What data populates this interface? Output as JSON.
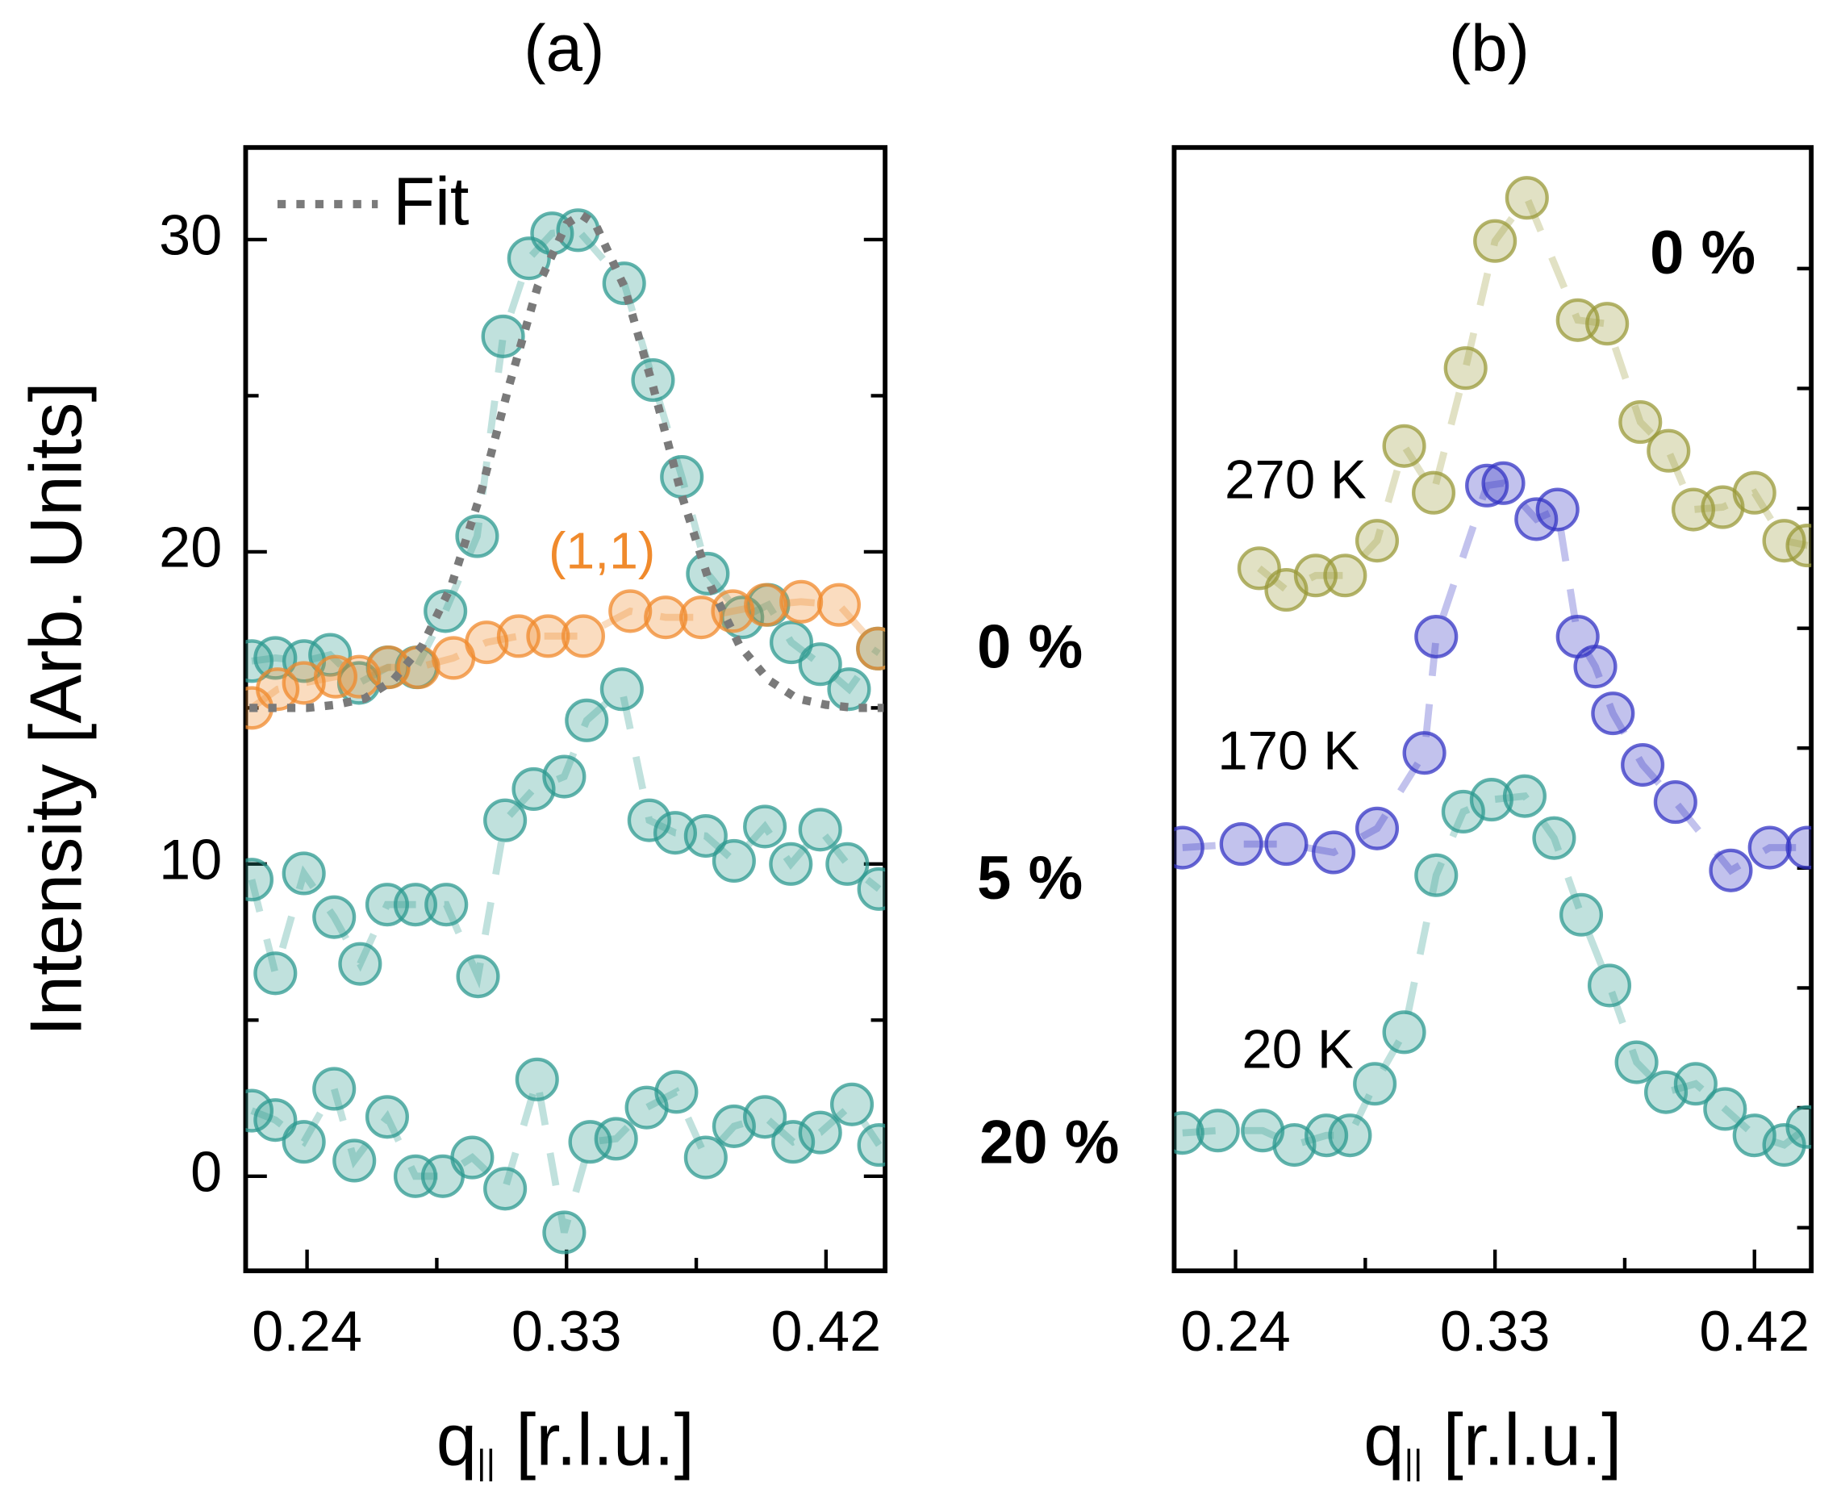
{
  "chart_data": [
    {
      "type": "scatter",
      "title": "(a)",
      "ylabel": "Intensity [Arb. Units]",
      "xlabel": {
        "text": "q",
        "subscript": "||",
        "after": " [r.l.u.]"
      },
      "xlim": [
        0.2187,
        0.4405
      ],
      "xticks": [
        0.24,
        0.33,
        0.42
      ],
      "xticks_minor": [
        0.285,
        0.375
      ],
      "ylim": [
        -3.03,
        32.95
      ],
      "yticks": [
        0,
        10,
        20,
        30
      ],
      "yticks_minor": [
        5,
        15,
        25
      ],
      "series": [
        {
          "name": "0 %",
          "style": "markers",
          "color": "#2e9a90",
          "x": [
            0.2208,
            0.229,
            0.239,
            0.248,
            0.258,
            0.268,
            0.278,
            0.288,
            0.299,
            0.308,
            0.317,
            0.325,
            0.334,
            0.35,
            0.36,
            0.37,
            0.379,
            0.391,
            0.4,
            0.408,
            0.418,
            0.428,
            0.438
          ],
          "values": [
            16.5,
            16.6,
            16.5,
            16.7,
            15.8,
            16.3,
            16.3,
            18.1,
            20.5,
            26.9,
            29.4,
            30.2,
            30.3,
            28.6,
            25.5,
            22.4,
            19.3,
            17.9,
            18.3,
            17.1,
            16.4,
            15.6,
            16.9
          ]
        },
        {
          "name": "(1,1)",
          "style": "markers",
          "color": "#f08a2c",
          "x": [
            0.2208,
            0.2298,
            0.2389,
            0.2499,
            0.2581,
            0.2683,
            0.2786,
            0.2908,
            0.3023,
            0.3134,
            0.3236,
            0.3358,
            0.3521,
            0.3644,
            0.3767,
            0.3877,
            0.3991,
            0.4114,
            0.4245,
            0.438
          ],
          "values": [
            15.0,
            15.6,
            15.8,
            16.0,
            16.0,
            16.3,
            16.3,
            16.6,
            17.1,
            17.3,
            17.3,
            17.3,
            18.1,
            17.9,
            17.9,
            18.1,
            18.3,
            18.4,
            18.3,
            16.9
          ]
        },
        {
          "name": "Fit",
          "style": "dotted",
          "color": "#7a7a7a",
          "legend": true,
          "x": [
            0.22,
            0.23,
            0.24,
            0.25,
            0.26,
            0.27,
            0.28,
            0.29,
            0.3,
            0.31,
            0.32,
            0.33,
            0.335,
            0.34,
            0.35,
            0.36,
            0.37,
            0.38,
            0.39,
            0.4,
            0.41,
            0.42,
            0.43,
            0.44
          ],
          "values": [
            15.0,
            15.0,
            15.0,
            15.1,
            15.3,
            15.9,
            17.0,
            18.9,
            21.8,
            25.3,
            28.5,
            30.5,
            30.8,
            30.5,
            28.5,
            25.3,
            21.8,
            18.9,
            17.0,
            15.9,
            15.3,
            15.1,
            15.0,
            15.0
          ]
        },
        {
          "name": "5 %",
          "style": "markers",
          "color": "#2e9a90",
          "x": [
            0.2208,
            0.229,
            0.2389,
            0.2494,
            0.2584,
            0.2678,
            0.2776,
            0.2883,
            0.2993,
            0.3087,
            0.3186,
            0.3292,
            0.337,
            0.3492,
            0.3587,
            0.3677,
            0.3783,
            0.3881,
            0.3988,
            0.4078,
            0.418,
            0.4274,
            0.4384
          ],
          "values": [
            9.5,
            6.5,
            9.7,
            8.3,
            6.8,
            8.7,
            8.7,
            8.7,
            6.4,
            11.4,
            12.4,
            12.8,
            14.6,
            15.6,
            11.4,
            11.0,
            10.9,
            10.1,
            11.2,
            10.0,
            11.1,
            10.0,
            9.2
          ]
        },
        {
          "name": "20 %",
          "style": "markers",
          "color": "#2e9a90",
          "x": [
            0.2208,
            0.229,
            0.2389,
            0.2494,
            0.2564,
            0.2678,
            0.2776,
            0.2871,
            0.2973,
            0.3087,
            0.3198,
            0.3292,
            0.3382,
            0.3472,
            0.3578,
            0.3681,
            0.3783,
            0.3881,
            0.3988,
            0.4086,
            0.418,
            0.429,
            0.4384
          ],
          "values": [
            2.1,
            1.8,
            1.1,
            2.8,
            0.5,
            1.9,
            0.0,
            0.0,
            0.6,
            -0.4,
            3.1,
            -1.8,
            1.1,
            1.2,
            2.2,
            2.7,
            0.6,
            1.6,
            1.9,
            1.1,
            1.4,
            2.3,
            1.0
          ]
        }
      ]
    },
    {
      "type": "scatter",
      "title": "(b)",
      "xlabel": {
        "text": "q",
        "subscript": "||",
        "after": " [r.l.u.]"
      },
      "xlim": [
        0.2187,
        0.4397
      ],
      "xticks": [
        0.24,
        0.33,
        0.42
      ],
      "xticks_minor": [
        0.285,
        0.375
      ],
      "ylim": [
        0.64,
        10.01
      ],
      "yticks_minor": [
        1,
        2,
        3,
        4,
        5,
        6,
        7,
        8,
        9
      ],
      "annotations": [
        "0 %"
      ],
      "series": [
        {
          "name": "270 K",
          "style": "markers",
          "color": "#9a9a3a",
          "x": [
            0.2482,
            0.2576,
            0.2678,
            0.278,
            0.2891,
            0.2985,
            0.3087,
            0.3198,
            0.33,
            0.3411,
            0.3587,
            0.3689,
            0.3804,
            0.3902,
            0.3988,
            0.409,
            0.42,
            0.4303,
            0.4384
          ],
          "values": [
            6.5,
            6.32,
            6.44,
            6.44,
            6.73,
            7.52,
            7.13,
            8.17,
            9.23,
            9.59,
            8.57,
            8.54,
            7.72,
            7.48,
            6.99,
            7.01,
            7.13,
            6.73,
            6.69
          ]
        },
        {
          "name": "170 K",
          "style": "markers",
          "color": "#3434c4",
          "x": [
            0.2216,
            0.242,
            0.2576,
            0.274,
            0.2891,
            0.3055,
            0.3096,
            0.3272,
            0.3329,
            0.3443,
            0.3517,
            0.3587,
            0.3648,
            0.3709,
            0.3812,
            0.3926,
            0.4118,
            0.4253,
            0.4384
          ],
          "values": [
            4.17,
            4.2,
            4.2,
            4.13,
            4.33,
            4.96,
            5.93,
            7.19,
            7.21,
            6.91,
            6.99,
            5.93,
            5.68,
            5.29,
            4.86,
            4.55,
            3.98,
            4.17,
            4.17
          ]
        },
        {
          "name": "20 K",
          "style": "markers",
          "color": "#2e9a90",
          "x": [
            0.2216,
            0.2339,
            0.2494,
            0.2604,
            0.2715,
            0.2797,
            0.2883,
            0.2985,
            0.3096,
            0.319,
            0.3288,
            0.3403,
            0.3505,
            0.3599,
            0.3697,
            0.3791,
            0.3893,
            0.3996,
            0.4098,
            0.42,
            0.4303,
            0.4384
          ],
          "values": [
            1.79,
            1.81,
            1.81,
            1.69,
            1.77,
            1.77,
            2.2,
            2.63,
            3.94,
            4.47,
            4.57,
            4.6,
            4.25,
            3.61,
            3.02,
            2.38,
            2.13,
            2.2,
            1.99,
            1.77,
            1.69,
            1.84
          ]
        }
      ]
    }
  ]
}
